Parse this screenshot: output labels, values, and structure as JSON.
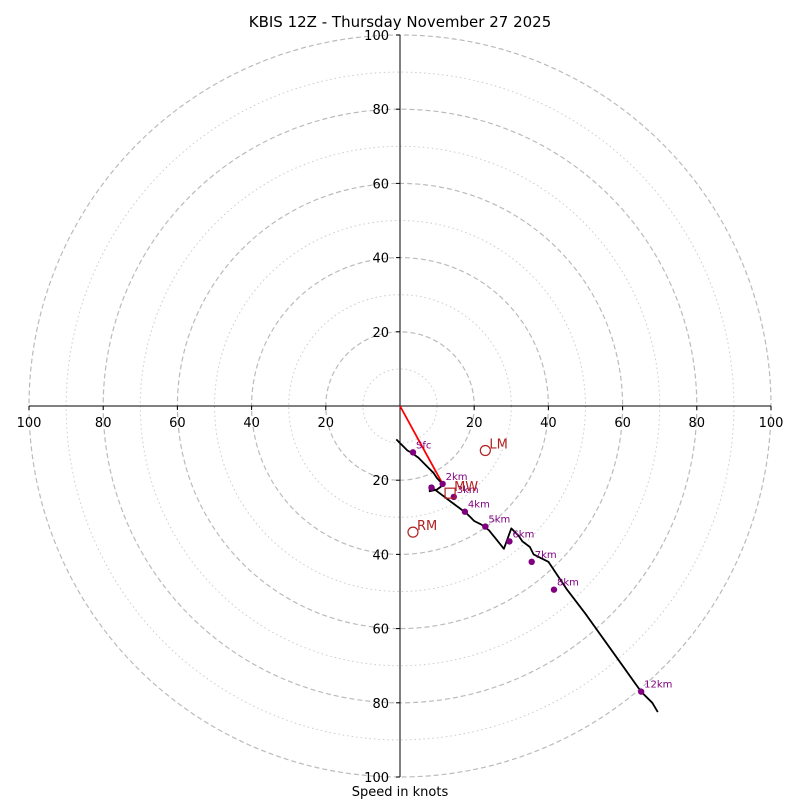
{
  "chart_data": {
    "type": "hodograph",
    "title": "KBIS 12Z - Thursday November 27 2025",
    "xlabel": "Speed in knots",
    "range": [
      -100,
      100
    ],
    "tick_labels": [
      "100",
      "80",
      "60",
      "40",
      "20",
      "20",
      "40",
      "60",
      "80",
      "100"
    ],
    "y_tick_labels": [
      "100",
      "80",
      "60",
      "40",
      "20",
      "20",
      "40",
      "60",
      "80",
      "100"
    ],
    "ring_interval_kt": 10,
    "ring_max_kt": 100,
    "grid": true,
    "colors": {
      "hodo_line": "#000000",
      "height_point": "#800080",
      "height_label": "#800080",
      "storm_motion_line": "#ff0000",
      "motion_marker": "#b22222",
      "ring_major": "#bbbbbb",
      "ring_minor": "#cccccc"
    },
    "hodograph": {
      "u": [
        -1,
        0,
        1,
        2,
        3,
        5,
        7,
        9,
        10,
        11,
        12,
        10,
        8,
        8,
        10,
        12,
        14,
        16,
        18,
        19,
        20,
        22,
        24,
        26,
        28,
        30,
        32,
        33,
        35,
        36,
        40,
        45,
        50,
        55,
        60,
        65,
        68,
        69.5
      ],
      "v": [
        -9,
        -10,
        -11,
        -12,
        -12.5,
        -14,
        -16,
        -18,
        -19.5,
        -20.5,
        -21,
        -22.5,
        -23,
        -21.5,
        -23,
        -24.5,
        -26,
        -27.5,
        -29,
        -30,
        -31,
        -32,
        -33.5,
        -36,
        -38.5,
        -33,
        -35,
        -36.5,
        -38,
        -40,
        -42,
        -49.5,
        -56,
        -63,
        -70,
        -77,
        -80,
        -82.5
      ]
    },
    "height_points": [
      {
        "label": "Sfc",
        "u": 3.5,
        "v": -12.5
      },
      {
        "label": "",
        "u": 8.5,
        "v": -22
      },
      {
        "label": "2km",
        "u": 11.5,
        "v": -21
      },
      {
        "label": "3km",
        "u": 14.5,
        "v": -24.5
      },
      {
        "label": "4km",
        "u": 17.5,
        "v": -28.5
      },
      {
        "label": "5km",
        "u": 23,
        "v": -32.5
      },
      {
        "label": "6km",
        "u": 29.5,
        "v": -36.5
      },
      {
        "label": "7km",
        "u": 35.5,
        "v": -42
      },
      {
        "label": "8km",
        "u": 41.5,
        "v": -49.5
      },
      {
        "label": "12km",
        "u": 65,
        "v": -77
      }
    ],
    "storm_motion_line": {
      "u": [
        0,
        11.5
      ],
      "v": [
        0,
        -21
      ]
    },
    "markers": [
      {
        "label": "LM",
        "shape": "circle",
        "u": 23,
        "v": -12
      },
      {
        "label": "MW",
        "shape": "square",
        "u": 13.5,
        "v": -23.5
      },
      {
        "label": "RM",
        "shape": "circle",
        "u": 3.5,
        "v": -34
      }
    ]
  }
}
